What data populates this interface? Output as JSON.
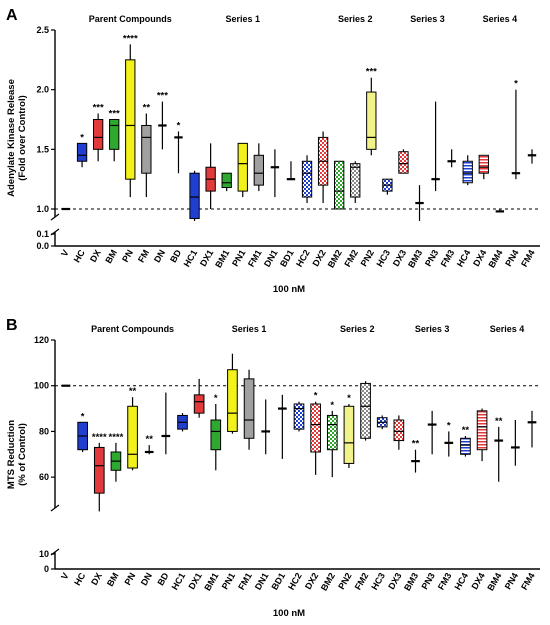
{
  "chart_data": [
    {
      "type": "box",
      "panel": "A",
      "ylabel": [
        "Adenylate Kinase Release",
        "(Fold over Control)"
      ],
      "xlabel": "100 nM",
      "ylim": [
        0,
        2.5
      ],
      "axis_break": [
        0.1,
        1.0
      ],
      "yticks": [
        "0.0",
        "0.1",
        "1.0",
        "1.5",
        "2.0",
        "2.5"
      ],
      "reference_line": 1.0,
      "groups": [
        "Parent Compounds",
        "Series 1",
        "Series 2",
        "Series 3",
        "Series 4"
      ],
      "categories": [
        "V",
        "HC",
        "DX",
        "BM",
        "PN",
        "FM",
        "DN",
        "BD",
        "HC1",
        "DX1",
        "BM1",
        "PN1",
        "FM1",
        "DN1",
        "BD1",
        "HC2",
        "DX2",
        "BM2",
        "FM2",
        "PN2",
        "HC3",
        "DX3",
        "BM3",
        "PN3",
        "FM3",
        "HC4",
        "DX4",
        "BM4",
        "PN4",
        "FM4"
      ],
      "boxes": [
        {
          "min": 1.0,
          "q1": 1.0,
          "med": 1.0,
          "q3": 1.0,
          "max": 1.0,
          "sig": ""
        },
        {
          "min": 1.35,
          "q1": 1.4,
          "med": 1.45,
          "q3": 1.55,
          "max": 1.55,
          "sig": "*"
        },
        {
          "min": 1.4,
          "q1": 1.5,
          "med": 1.6,
          "q3": 1.75,
          "max": 1.8,
          "sig": "***"
        },
        {
          "min": 1.4,
          "q1": 1.5,
          "med": 1.7,
          "q3": 1.75,
          "max": 1.75,
          "sig": "***"
        },
        {
          "min": 1.1,
          "q1": 1.25,
          "med": 1.7,
          "q3": 2.25,
          "max": 2.38,
          "sig": "****"
        },
        {
          "min": 1.1,
          "q1": 1.3,
          "med": 1.6,
          "q3": 1.7,
          "max": 1.8,
          "sig": "**"
        },
        {
          "min": 1.5,
          "q1": 1.5,
          "med": 1.7,
          "q3": 1.7,
          "max": 1.9,
          "sig": "***"
        },
        {
          "min": 1.3,
          "q1": 1.5,
          "med": 1.6,
          "q3": 1.6,
          "max": 1.65,
          "sig": "*"
        },
        {
          "min": 0.9,
          "q1": 0.92,
          "med": 1.1,
          "q3": 1.3,
          "max": 1.32,
          "sig": ""
        },
        {
          "min": 1.0,
          "q1": 1.15,
          "med": 1.25,
          "q3": 1.35,
          "max": 1.55,
          "sig": ""
        },
        {
          "min": 1.15,
          "q1": 1.18,
          "med": 1.22,
          "q3": 1.3,
          "max": 1.3,
          "sig": ""
        },
        {
          "min": 1.1,
          "q1": 1.15,
          "med": 1.38,
          "q3": 1.55,
          "max": 1.55,
          "sig": ""
        },
        {
          "min": 1.15,
          "q1": 1.2,
          "med": 1.3,
          "q3": 1.45,
          "max": 1.55,
          "sig": ""
        },
        {
          "min": 1.1,
          "q1": 1.2,
          "med": 1.35,
          "q3": 1.35,
          "max": 1.5,
          "sig": ""
        },
        {
          "min": 1.25,
          "q1": 1.25,
          "med": 1.25,
          "q3": 1.25,
          "max": 1.4,
          "sig": ""
        },
        {
          "min": 1.05,
          "q1": 1.1,
          "med": 1.3,
          "q3": 1.4,
          "max": 1.45,
          "sig": ""
        },
        {
          "min": 1.05,
          "q1": 1.2,
          "med": 1.4,
          "q3": 1.6,
          "max": 1.65,
          "sig": ""
        },
        {
          "min": 1.0,
          "q1": 1.0,
          "med": 1.15,
          "q3": 1.4,
          "max": 1.4,
          "sig": ""
        },
        {
          "min": 1.05,
          "q1": 1.1,
          "med": 1.35,
          "q3": 1.38,
          "max": 1.4,
          "sig": ""
        },
        {
          "min": 1.45,
          "q1": 1.5,
          "med": 1.6,
          "q3": 1.98,
          "max": 2.1,
          "sig": "***"
        },
        {
          "min": 1.12,
          "q1": 1.15,
          "med": 1.2,
          "q3": 1.25,
          "max": 1.25,
          "sig": ""
        },
        {
          "min": 1.3,
          "q1": 1.3,
          "med": 1.38,
          "q3": 1.48,
          "max": 1.5,
          "sig": ""
        },
        {
          "min": 0.9,
          "q1": 1.05,
          "med": 1.05,
          "q3": 1.05,
          "max": 1.2,
          "sig": ""
        },
        {
          "min": 1.15,
          "q1": 1.25,
          "med": 1.25,
          "q3": 1.25,
          "max": 1.9,
          "sig": ""
        },
        {
          "min": 1.35,
          "q1": 1.4,
          "med": 1.4,
          "q3": 1.4,
          "max": 1.5,
          "sig": ""
        },
        {
          "min": 1.2,
          "q1": 1.22,
          "med": 1.3,
          "q3": 1.4,
          "max": 1.45,
          "sig": ""
        },
        {
          "min": 1.25,
          "q1": 1.3,
          "med": 1.35,
          "q3": 1.45,
          "max": 1.45,
          "sig": ""
        },
        {
          "min": 0.98,
          "q1": 0.98,
          "med": 0.98,
          "q3": 0.98,
          "max": 1.0,
          "sig": ""
        },
        {
          "min": 1.25,
          "q1": 1.3,
          "med": 1.3,
          "q3": 1.35,
          "max": 2.0,
          "sig": "*"
        },
        {
          "min": 1.38,
          "q1": 1.42,
          "med": 1.45,
          "q3": 1.45,
          "max": 1.5,
          "sig": ""
        }
      ]
    },
    {
      "type": "box",
      "panel": "B",
      "ylabel": [
        "MTS Reduction",
        "(% of Control)"
      ],
      "xlabel": "100 nM",
      "ylim": [
        0,
        120
      ],
      "axis_break": [
        10,
        50
      ],
      "yticks": [
        "0",
        "10",
        "60",
        "80",
        "100",
        "120"
      ],
      "reference_line": 100,
      "groups": [
        "Parent Compounds",
        "Series 1",
        "Series 2",
        "Series 3",
        "Series 4"
      ],
      "categories": [
        "V",
        "HC",
        "DX",
        "BM",
        "PN",
        "DN",
        "BD",
        "HC1",
        "DX1",
        "BM1",
        "PN1",
        "FM1",
        "DN1",
        "BD1",
        "HC2",
        "DX2",
        "BM2",
        "PN2",
        "FM2",
        "HC3",
        "DX3",
        "BM3",
        "PN3",
        "FM3",
        "HC4",
        "DX4",
        "BM4",
        "PN4",
        "FM4"
      ],
      "boxes": [
        {
          "min": 100,
          "q1": 100,
          "med": 100,
          "q3": 100,
          "max": 100,
          "sig": ""
        },
        {
          "min": 71,
          "q1": 72,
          "med": 78,
          "q3": 84,
          "max": 84,
          "sig": "*"
        },
        {
          "min": 45,
          "q1": 53,
          "med": 65,
          "q3": 73,
          "max": 75,
          "sig": "****"
        },
        {
          "min": 58,
          "q1": 63,
          "med": 67,
          "q3": 71,
          "max": 75,
          "sig": "****"
        },
        {
          "min": 63,
          "q1": 64,
          "med": 70,
          "q3": 91,
          "max": 95,
          "sig": "**"
        },
        {
          "min": 70,
          "q1": 71,
          "med": 71,
          "q3": 71,
          "max": 74,
          "sig": "**"
        },
        {
          "min": 70,
          "q1": 78,
          "med": 78,
          "q3": 78,
          "max": 97,
          "sig": ""
        },
        {
          "min": 80,
          "q1": 81,
          "med": 84,
          "q3": 87,
          "max": 88,
          "sig": ""
        },
        {
          "min": 86,
          "q1": 88,
          "med": 93,
          "q3": 96,
          "max": 103,
          "sig": ""
        },
        {
          "min": 63,
          "q1": 72,
          "med": 80,
          "q3": 85,
          "max": 92,
          "sig": "*"
        },
        {
          "min": 79,
          "q1": 80,
          "med": 88,
          "q3": 107,
          "max": 114,
          "sig": ""
        },
        {
          "min": 72,
          "q1": 77,
          "med": 85,
          "q3": 103,
          "max": 107,
          "sig": ""
        },
        {
          "min": 70,
          "q1": 80,
          "med": 80,
          "q3": 80,
          "max": 94,
          "sig": ""
        },
        {
          "min": 68,
          "q1": 90,
          "med": 90,
          "q3": 90,
          "max": 96,
          "sig": ""
        },
        {
          "min": 80,
          "q1": 81,
          "med": 90,
          "q3": 92,
          "max": 93,
          "sig": ""
        },
        {
          "min": 61,
          "q1": 71,
          "med": 83,
          "q3": 92,
          "max": 93,
          "sig": "*"
        },
        {
          "min": 60,
          "q1": 72,
          "med": 83,
          "q3": 87,
          "max": 89,
          "sig": "*"
        },
        {
          "min": 64,
          "q1": 66,
          "med": 75,
          "q3": 91,
          "max": 92,
          "sig": "*"
        },
        {
          "min": 76,
          "q1": 77,
          "med": 91,
          "q3": 101,
          "max": 102,
          "sig": ""
        },
        {
          "min": 81,
          "q1": 82,
          "med": 84,
          "q3": 86,
          "max": 87,
          "sig": ""
        },
        {
          "min": 72,
          "q1": 76,
          "med": 80,
          "q3": 85,
          "max": 87,
          "sig": ""
        },
        {
          "min": 62,
          "q1": 67,
          "med": 67,
          "q3": 67,
          "max": 72,
          "sig": "**"
        },
        {
          "min": 70,
          "q1": 83,
          "med": 83,
          "q3": 83,
          "max": 89,
          "sig": ""
        },
        {
          "min": 69,
          "q1": 75,
          "med": 75,
          "q3": 75,
          "max": 80,
          "sig": "*"
        },
        {
          "min": 69,
          "q1": 70,
          "med": 74,
          "q3": 77,
          "max": 78,
          "sig": "**"
        },
        {
          "min": 67,
          "q1": 72,
          "med": 82,
          "q3": 89,
          "max": 90,
          "sig": ""
        },
        {
          "min": 58,
          "q1": 76,
          "med": 76,
          "q3": 76,
          "max": 82,
          "sig": "**"
        },
        {
          "min": 65,
          "q1": 73,
          "med": 73,
          "q3": 73,
          "max": 85,
          "sig": ""
        },
        {
          "min": 73,
          "q1": 84,
          "med": 84,
          "q3": 84,
          "max": 89,
          "sig": ""
        }
      ]
    }
  ]
}
